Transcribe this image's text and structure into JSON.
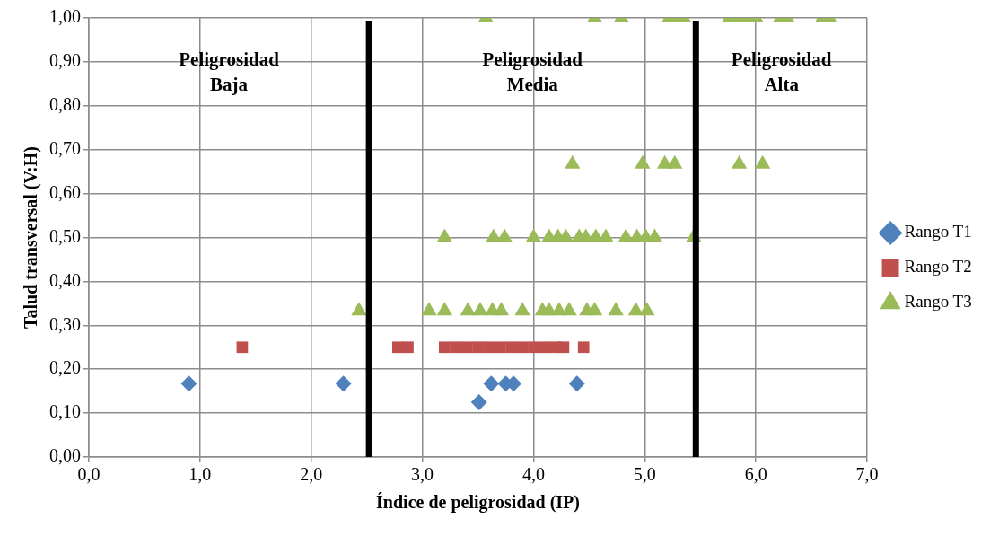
{
  "chart_data": {
    "type": "scatter",
    "xlabel": "Índice de peligrosidad (IP)",
    "ylabel": "Talud transversal (V:H)",
    "xlim": [
      0,
      7
    ],
    "ylim": [
      0,
      1
    ],
    "xticks": [
      {
        "value": 0,
        "label": "0,0"
      },
      {
        "value": 1,
        "label": "1,0"
      },
      {
        "value": 2,
        "label": "2,0"
      },
      {
        "value": 3,
        "label": "3,0"
      },
      {
        "value": 4,
        "label": "4,0"
      },
      {
        "value": 5,
        "label": "5,0"
      },
      {
        "value": 6,
        "label": "6,0"
      },
      {
        "value": 7,
        "label": "7,0"
      }
    ],
    "yticks": [
      {
        "value": 0,
        "label": "0,00"
      },
      {
        "value": 0.1,
        "label": "0,10"
      },
      {
        "value": 0.2,
        "label": "0,20"
      },
      {
        "value": 0.3,
        "label": "0,30"
      },
      {
        "value": 0.4,
        "label": "0,40"
      },
      {
        "value": 0.5,
        "label": "0,50"
      },
      {
        "value": 0.6,
        "label": "0,60"
      },
      {
        "value": 0.7,
        "label": "0,70"
      },
      {
        "value": 0.8,
        "label": "0,80"
      },
      {
        "value": 0.9,
        "label": "0,90"
      },
      {
        "value": 1,
        "label": "1,00"
      }
    ],
    "grid": true,
    "legend": "right",
    "series": [
      {
        "name": "Rango T1",
        "color": "#4f81bd",
        "marker": "diamond",
        "x": [
          0.9,
          2.29,
          3.51,
          3.62,
          3.75,
          3.82,
          4.39
        ],
        "values": [
          0.167,
          0.167,
          0.125,
          0.167,
          0.167,
          0.167,
          0.167
        ]
      },
      {
        "name": "Rango T2",
        "color": "#c0504d",
        "marker": "square",
        "x": [
          1.38,
          2.78,
          2.87,
          3.2,
          3.3,
          3.4,
          3.5,
          3.6,
          3.7,
          3.8,
          3.9,
          4.0,
          4.1,
          4.2,
          4.27,
          4.45
        ],
        "values": [
          0.25,
          0.25,
          0.25,
          0.25,
          0.25,
          0.25,
          0.25,
          0.25,
          0.25,
          0.25,
          0.25,
          0.25,
          0.25,
          0.25,
          0.25,
          0.25
        ]
      },
      {
        "name": "Rango T3",
        "color": "#9bbb59",
        "marker": "triangle",
        "x": [
          2.43,
          3.06,
          3.2,
          3.41,
          3.52,
          3.63,
          3.71,
          3.9,
          4.08,
          4.14,
          4.23,
          4.32,
          4.48,
          4.55,
          4.74,
          4.92,
          5.02,
          3.2,
          3.64,
          3.74,
          4.0,
          4.14,
          4.22,
          4.29,
          4.41,
          4.47,
          4.56,
          4.65,
          4.83,
          4.93,
          5.01,
          5.09,
          5.44,
          4.35,
          4.98,
          5.18,
          5.27,
          5.85,
          6.06,
          3.57,
          4.55,
          4.79,
          5.22,
          5.29,
          5.35,
          5.76,
          5.84,
          5.93,
          6.0,
          6.22,
          6.28,
          6.6,
          6.66
        ],
        "values": [
          0.333,
          0.333,
          0.333,
          0.333,
          0.333,
          0.333,
          0.333,
          0.333,
          0.333,
          0.333,
          0.333,
          0.333,
          0.333,
          0.333,
          0.333,
          0.333,
          0.333,
          0.5,
          0.5,
          0.5,
          0.5,
          0.5,
          0.5,
          0.5,
          0.5,
          0.5,
          0.5,
          0.5,
          0.5,
          0.5,
          0.5,
          0.5,
          0.5,
          0.667,
          0.667,
          0.667,
          0.667,
          0.667,
          0.667,
          1,
          1,
          1,
          1,
          1,
          1,
          1,
          1,
          1,
          1,
          1,
          1,
          1,
          1
        ]
      }
    ],
    "ref_lines": [
      {
        "axis": "x",
        "value": 2.52,
        "color": "#000000"
      },
      {
        "axis": "x",
        "value": 5.46,
        "color": "#000000"
      }
    ],
    "annotations": [
      "Peligrosidad\nBaja",
      "Peligrosidad\nMedia",
      "Peligrosidad\nAlta"
    ]
  }
}
